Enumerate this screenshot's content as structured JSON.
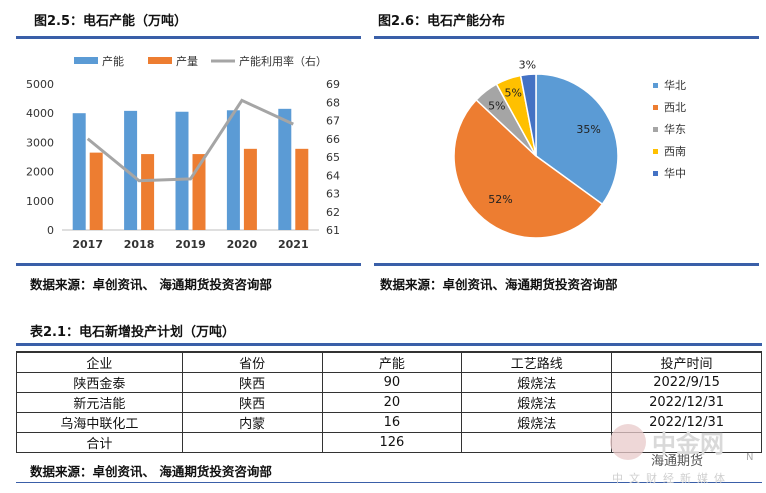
{
  "fig_left": {
    "title": "图2.5：电石产能（万吨）",
    "legend": [
      "产能",
      "产量",
      "产能利用率（右）"
    ]
  },
  "fig_right": {
    "title": "图2.6：电石产能分布"
  },
  "source_left": "数据来源：卓创资讯、 海通期货投资咨询部",
  "source_right": "数据来源：卓创资讯、海通期货投资咨询部",
  "table": {
    "title": "表2.1：电石新增投产计划（万吨）",
    "headers": [
      "企业",
      "省份",
      "产能",
      "工艺路线",
      "投产时间"
    ],
    "rows": [
      [
        "陕西金泰",
        "陕西",
        "90",
        "煅烧法",
        "2022/9/15"
      ],
      [
        "新元洁能",
        "陕西",
        "20",
        "煅烧法",
        "2022/12/31"
      ],
      [
        "乌海中联化工",
        "内蒙",
        "16",
        "煅烧法",
        "2022/12/31"
      ]
    ],
    "total_label": "合计",
    "total_value": "126",
    "source": "数据来源：卓创资讯、 海通期货投资咨询部"
  },
  "watermark": {
    "main": "中金网",
    "sub": "中文财经新媒体",
    "brand": "海通期货",
    "trail": "N"
  },
  "colors": {
    "capacity": "#5b9bd5",
    "output": "#ed7d31",
    "utilization": "#a5a5a5",
    "rule": "#3a5fa8"
  },
  "chart_data": [
    {
      "type": "bar",
      "categories": [
        "2017",
        "2018",
        "2019",
        "2020",
        "2021"
      ],
      "series": [
        {
          "name": "产能",
          "axis": "left",
          "values": [
            4000,
            4080,
            4050,
            4100,
            4150
          ]
        },
        {
          "name": "产量",
          "axis": "left",
          "values": [
            2650,
            2600,
            2600,
            2780,
            2780
          ]
        },
        {
          "name": "产能利用率（右）",
          "axis": "right",
          "type": "line",
          "values": [
            66.0,
            63.7,
            63.8,
            68.1,
            66.8
          ]
        }
      ],
      "yticks_left": [
        0,
        1000,
        2000,
        3000,
        4000,
        5000
      ],
      "yticks_right": [
        61,
        62,
        63,
        64,
        65,
        66,
        67,
        68,
        69
      ],
      "ylim": [
        0,
        5000
      ],
      "ylim_right": [
        61,
        69
      ],
      "legend_position": "top",
      "grid": false
    },
    {
      "type": "pie",
      "labels": [
        "华北",
        "西北",
        "华东",
        "西南",
        "华中"
      ],
      "values": [
        35,
        52,
        5,
        5,
        3
      ],
      "value_labels": [
        "35%",
        "52%",
        "5%",
        "5%",
        "3%"
      ],
      "colors": [
        "#5b9bd5",
        "#ed7d31",
        "#a5a5a5",
        "#ffc000",
        "#4472c4"
      ],
      "legend_position": "right"
    }
  ]
}
